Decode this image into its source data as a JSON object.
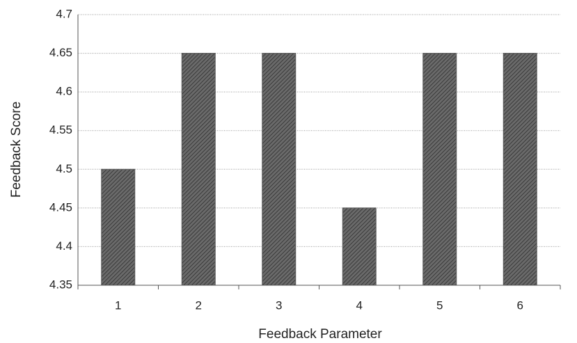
{
  "chart_data": {
    "type": "bar",
    "x_label": "Feedback Parameter",
    "y_label": "Feedback Score",
    "categories": [
      "1",
      "2",
      "3",
      "4",
      "5",
      "6"
    ],
    "values": [
      4.5,
      4.65,
      4.65,
      4.45,
      4.65,
      4.65
    ],
    "color": "#5a5a5a",
    "ylim": [
      4.35,
      4.7
    ],
    "yticks": [
      4.35,
      4.4,
      4.45,
      4.5,
      4.55,
      4.6,
      4.65,
      4.7
    ],
    "grid": true
  }
}
